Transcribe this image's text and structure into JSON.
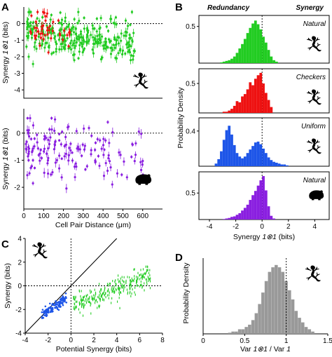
{
  "colors": {
    "green": "#22cc22",
    "red": "#ee1111",
    "purple": "#8a1fe0",
    "blue": "#1d55e8",
    "gray": "#999999",
    "black": "#000000"
  },
  "icons": [
    "salamander-icon",
    "guinea-pig-icon"
  ],
  "chart_data": [
    {
      "id": "A-top",
      "panel_label": "A",
      "type": "scatter",
      "ylabel_pre": "Synergy ",
      "ylabel_italic": "1⊗1",
      "ylabel_post": " (bits)",
      "xlim": [
        0,
        700
      ],
      "ylim": [
        -4.5,
        1
      ],
      "yticks": [
        "0",
        "-1",
        "-2",
        "-3",
        "-4"
      ],
      "yticks_values": [
        0,
        -1,
        -2,
        -3,
        -4
      ],
      "reference_line_y": 0,
      "series": [
        {
          "color_key": "green",
          "n": 300,
          "x_range": [
            10,
            560
          ],
          "y_mean": [
            -0.4,
            -1.3
          ],
          "error_bars": true
        },
        {
          "color_key": "red",
          "n": 45,
          "x_range": [
            30,
            250
          ],
          "y_mean": [
            -0.4,
            -1.0
          ],
          "error_bars": true
        }
      ],
      "icon": "salamander-icon"
    },
    {
      "id": "A-bottom",
      "type": "scatter",
      "ylabel_pre": "Synergy ",
      "ylabel_italic": "1⊗1",
      "ylabel_post": " (bits)",
      "xlabel": "Cell Pair Distance (μm)",
      "xlim": [
        0,
        700
      ],
      "ylim": [
        -2.8,
        0.9
      ],
      "xticks": [
        "0",
        "100",
        "200",
        "300",
        "400",
        "500",
        "600"
      ],
      "xticks_values": [
        0,
        100,
        200,
        300,
        400,
        500,
        600
      ],
      "yticks": [
        "0",
        "-1",
        "-2"
      ],
      "yticks_values": [
        0,
        -1,
        -2
      ],
      "reference_line_y": 0,
      "series": [
        {
          "color_key": "purple",
          "n": 160,
          "x_range": [
            10,
            610
          ],
          "y_mean": [
            -0.5,
            -1.0
          ],
          "error_bars": true
        }
      ],
      "icon": "guinea-pig-icon"
    },
    {
      "id": "B",
      "panel_label": "B",
      "type": "bar",
      "header_left": "Redundancy",
      "header_right": "Synergy",
      "ylabel": "Probability Density",
      "xlabel_pre": "Synergy ",
      "xlabel_italic": "1⊗1",
      "xlabel_post": "  (bits)",
      "xlim": [
        -4.8,
        5.1
      ],
      "xticks": [
        "-4",
        "-2",
        "0",
        "2",
        "4"
      ],
      "xticks_values": [
        -4,
        -2,
        0,
        2,
        4
      ],
      "reference_line_x": 0,
      "bin_width": 0.2,
      "histograms": [
        {
          "title": "Natural",
          "color_key": "green",
          "ylim": [
            0,
            0.65
          ],
          "yticks": [
            "0.5"
          ],
          "yticks_values": [
            0.5
          ],
          "bin_start": -3.2,
          "values": [
            0.01,
            0.02,
            0.03,
            0.04,
            0.06,
            0.09,
            0.14,
            0.2,
            0.26,
            0.33,
            0.41,
            0.48,
            0.54,
            0.58,
            0.53,
            0.46,
            0.36,
            0.28,
            0.18,
            0.09,
            0.04,
            0.02
          ],
          "icon": "salamander-icon"
        },
        {
          "title": "Checkers",
          "color_key": "red",
          "ylim": [
            0,
            0.75
          ],
          "yticks": [
            "0.5"
          ],
          "yticks_values": [
            0.5
          ],
          "bin_start": -3.0,
          "values": [
            0.02,
            0.02,
            0.04,
            0.07,
            0.12,
            0.2,
            0.18,
            0.28,
            0.32,
            0.4,
            0.52,
            0.47,
            0.58,
            0.64,
            0.68,
            0.5,
            0.34,
            0.22,
            0.1
          ],
          "icon": "salamander-icon"
        },
        {
          "title": "Uniform",
          "color_key": "blue",
          "ylim": [
            0,
            0.55
          ],
          "yticks": [
            "0.4"
          ],
          "yticks_values": [
            0.4
          ],
          "bin_start": -3.6,
          "values": [
            0.03,
            0.08,
            0.17,
            0.3,
            0.41,
            0.46,
            0.36,
            0.24,
            0.15,
            0.11,
            0.09,
            0.11,
            0.15,
            0.19,
            0.23,
            0.27,
            0.28,
            0.25,
            0.2,
            0.15,
            0.1,
            0.07,
            0.05,
            0.04,
            0.03,
            0.02,
            0.02,
            0.01
          ],
          "icon": "salamander-icon"
        },
        {
          "title": "Natural",
          "color_key": "purple",
          "ylim": [
            0,
            0.9
          ],
          "yticks": [
            "0.5"
          ],
          "yticks_values": [
            0.5
          ],
          "bin_start": -3.0,
          "values": [
            0.01,
            0.02,
            0.03,
            0.05,
            0.06,
            0.09,
            0.12,
            0.17,
            0.22,
            0.28,
            0.37,
            0.46,
            0.54,
            0.64,
            0.74,
            0.82,
            0.55,
            0.25,
            0.07,
            0.02
          ],
          "icon": "guinea-pig-icon"
        }
      ]
    },
    {
      "id": "C",
      "panel_label": "C",
      "type": "scatter",
      "ylabel": "Synergy (bits)",
      "xlabel": "Potential Synergy (bits)",
      "xlim": [
        -4,
        8
      ],
      "ylim": [
        -4,
        4
      ],
      "xticks": [
        "-4",
        "-2",
        "0",
        "2",
        "4",
        "6",
        "8"
      ],
      "xticks_values": [
        -4,
        -2,
        0,
        2,
        4,
        6,
        8
      ],
      "yticks": [
        "4",
        "2",
        "0",
        "-2",
        "-4"
      ],
      "yticks_values": [
        4,
        2,
        0,
        -2,
        -4
      ],
      "identity_line": true,
      "reference_line_x": 0,
      "reference_line_y": 0,
      "series": [
        {
          "color_key": "blue",
          "n": 110,
          "x_range": [
            -2.6,
            -0.4
          ],
          "slope": 0.62,
          "intercept": -0.85
        },
        {
          "color_key": "green",
          "n": 290,
          "x_range": [
            0.2,
            7.0
          ],
          "slope": 0.38,
          "intercept": -1.75
        }
      ],
      "icon": "salamander-icon"
    },
    {
      "id": "D",
      "panel_label": "D",
      "type": "bar",
      "ylabel": "Probability Density",
      "xlabel_a": "Var ",
      "xlabel_b": "1⊗1",
      "xlabel_c": "  /  Var ",
      "xlabel_d": "1",
      "xlim": [
        0,
        1.5
      ],
      "ylim": [
        0,
        0.33
      ],
      "xticks": [
        "0",
        "0.5",
        "1",
        "1.5"
      ],
      "xticks_values": [
        0,
        0.5,
        1,
        1.5
      ],
      "reference_line_x": 1,
      "bin_width": 0.04,
      "bin_start": 0.3,
      "values": [
        0.005,
        0.01,
        0.01,
        0.02,
        0.02,
        0.03,
        0.04,
        0.06,
        0.09,
        0.13,
        0.18,
        0.23,
        0.27,
        0.29,
        0.3,
        0.29,
        0.27,
        0.23,
        0.19,
        0.15,
        0.1,
        0.07,
        0.05,
        0.03,
        0.02,
        0.01
      ],
      "icon": "salamander-icon"
    }
  ]
}
